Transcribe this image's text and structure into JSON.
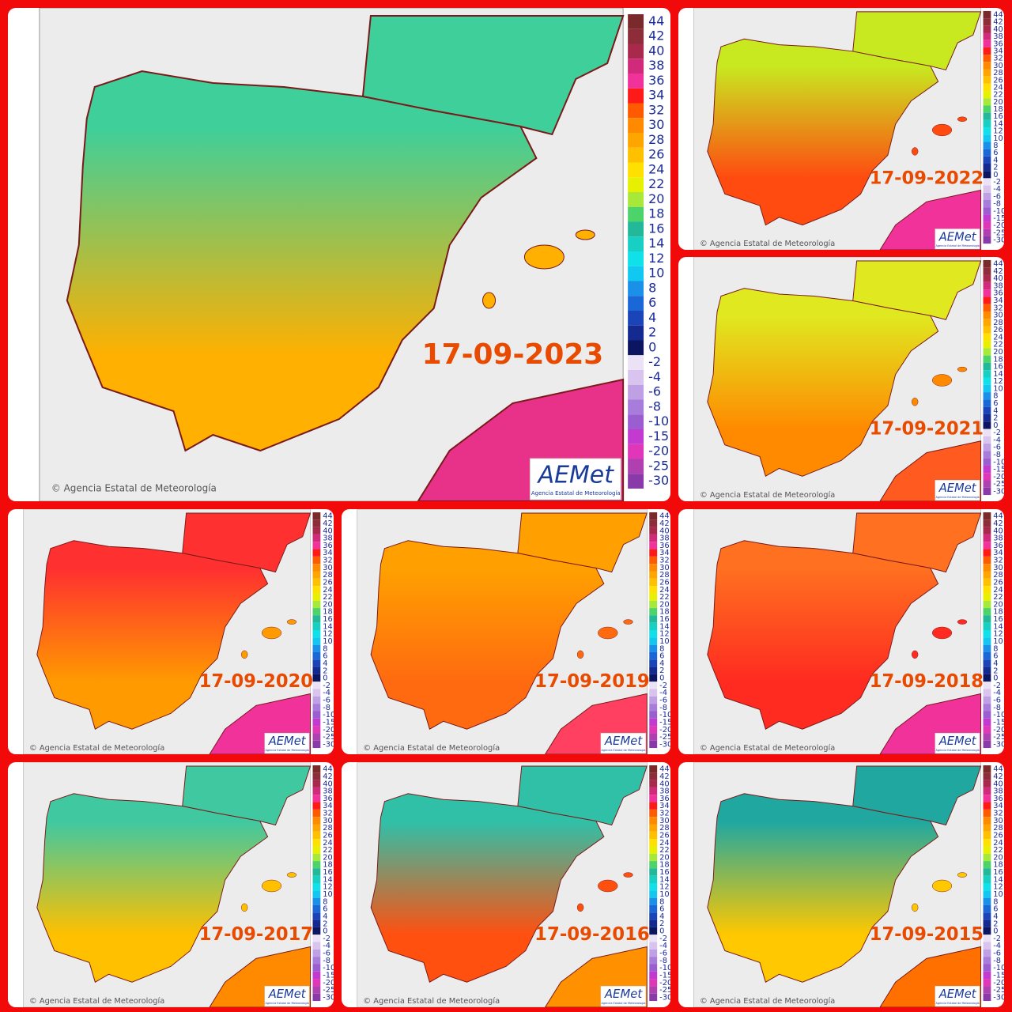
{
  "copyright": "© Agencia Estatal de Meteorología",
  "logo": {
    "name": "AEMet",
    "subtitle": "Agencia Estatal de Meteorología"
  },
  "scale": [
    {
      "label": "44",
      "color": "#7a2a2a"
    },
    {
      "label": "42",
      "color": "#8e2d3a"
    },
    {
      "label": "40",
      "color": "#a8294c"
    },
    {
      "label": "38",
      "color": "#d12a7a"
    },
    {
      "label": "36",
      "color": "#f0329a"
    },
    {
      "label": "34",
      "color": "#ff1a1a"
    },
    {
      "label": "32",
      "color": "#ff5a00"
    },
    {
      "label": "30",
      "color": "#ff8a00"
    },
    {
      "label": "28",
      "color": "#ffa500"
    },
    {
      "label": "26",
      "color": "#ffc000"
    },
    {
      "label": "24",
      "color": "#ffe000"
    },
    {
      "label": "22",
      "color": "#e6f000"
    },
    {
      "label": "20",
      "color": "#a8e838"
    },
    {
      "label": "18",
      "color": "#4cd46a"
    },
    {
      "label": "16",
      "color": "#22b89a"
    },
    {
      "label": "14",
      "color": "#18cfc4"
    },
    {
      "label": "12",
      "color": "#10e0e8"
    },
    {
      "label": "10",
      "color": "#10c8f0"
    },
    {
      "label": "8",
      "color": "#1a90e8"
    },
    {
      "label": "6",
      "color": "#1a68d8"
    },
    {
      "label": "4",
      "color": "#1a44b8"
    },
    {
      "label": "2",
      "color": "#142a90"
    },
    {
      "label": "0",
      "color": "#0c1660"
    },
    {
      "label": "-2",
      "color": "#ece2f6"
    },
    {
      "label": "-4",
      "color": "#d8c4ee"
    },
    {
      "label": "-6",
      "color": "#c0a0e4"
    },
    {
      "label": "-8",
      "color": "#a87cda"
    },
    {
      "label": "-10",
      "color": "#9a5ed0"
    },
    {
      "label": "-15",
      "color": "#c23ad0"
    },
    {
      "label": "-20",
      "color": "#e036b8"
    },
    {
      "label": "-25",
      "color": "#b040b0"
    },
    {
      "label": "-30",
      "color": "#8a3aa8"
    }
  ],
  "panels": [
    {
      "date": "17-09-2023",
      "north": "#3fcf9a",
      "south": "#ffb000",
      "sea": "#e8328a"
    },
    {
      "date": "17-09-2022",
      "north": "#c8e820",
      "south": "#ff4a10",
      "sea": "#f0329a"
    },
    {
      "date": "17-09-2021",
      "north": "#e0e820",
      "south": "#ff8a00",
      "sea": "#ff5a20"
    },
    {
      "date": "17-09-2020",
      "north": "#ff3030",
      "south": "#ff9a00",
      "sea": "#f0329a"
    },
    {
      "date": "17-09-2019",
      "north": "#ffa000",
      "south": "#ff6a10",
      "sea": "#ff4060"
    },
    {
      "date": "17-09-2018",
      "north": "#ff7020",
      "south": "#ff2a20",
      "sea": "#f0329a"
    },
    {
      "date": "17-09-2017",
      "north": "#40c8a0",
      "south": "#ffc000",
      "sea": "#ff8a00"
    },
    {
      "date": "17-09-2016",
      "north": "#30c0a8",
      "south": "#ff5010",
      "sea": "#ff9000"
    },
    {
      "date": "17-09-2015",
      "north": "#20a8a0",
      "south": "#ffc800",
      "sea": "#ff7000"
    }
  ]
}
